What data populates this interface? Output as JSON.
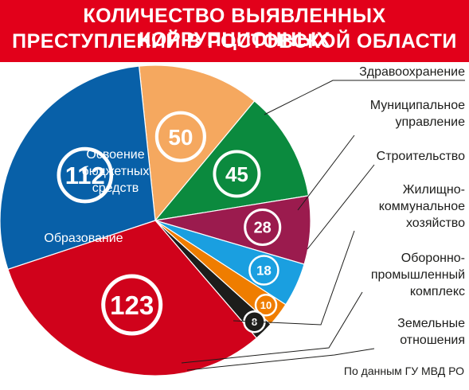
{
  "header": {
    "title_line1": "КОЛИЧЕСТВО ВЫЯВЛЕННЫХ КОРРУПЦИОННЫХ",
    "title_line2": "ПРЕСТУПЛЕНИЙ В РОСТОВСКОЙ ОБЛАСТИ"
  },
  "chart_data": {
    "type": "pie",
    "title": "КОЛИЧЕСТВО ВЫЯВЛЕННЫХ КОРРУПЦИОННЫХ ПРЕСТУПЛЕНИЙ В РОСТОВСКОЙ ОБЛАСТИ",
    "slices": [
      {
        "name": "Здравоохранение",
        "value": 50,
        "color": "#f5a85f",
        "label_lines": [
          "Здравоохранение"
        ]
      },
      {
        "name": "Муниципальное управление",
        "value": 45,
        "color": "#0b8a3e",
        "label_lines": [
          "Муниципальное",
          "управление"
        ]
      },
      {
        "name": "Строительство",
        "value": 28,
        "color": "#9b1b4e",
        "label_lines": [
          "Строительство"
        ]
      },
      {
        "name": "Жилищно-коммунальное хозяйство",
        "value": 18,
        "color": "#1a9fe0",
        "label_lines": [
          "Жилищно-",
          "коммунальное",
          "хозяйство"
        ]
      },
      {
        "name": "Оборонно-промышленный комплекс",
        "value": 10,
        "color": "#ef7d00",
        "label_lines": [
          "Оборонно-",
          "промышленный",
          "комплекс"
        ]
      },
      {
        "name": "Земельные отношения",
        "value": 8,
        "color": "#1d1d1b",
        "label_lines": [
          "Земельные",
          "отношения"
        ]
      },
      {
        "name": "Образование",
        "value": 123,
        "color": "#d0021b",
        "label_lines": [
          "Образование"
        ]
      },
      {
        "name": "Освоение бюджетных средств",
        "value": 112,
        "color": "#0860a8",
        "label_lines": [
          "Освоение",
          "бюджетных",
          "средств"
        ]
      }
    ]
  },
  "source": "По данным ГУ МВД РО"
}
